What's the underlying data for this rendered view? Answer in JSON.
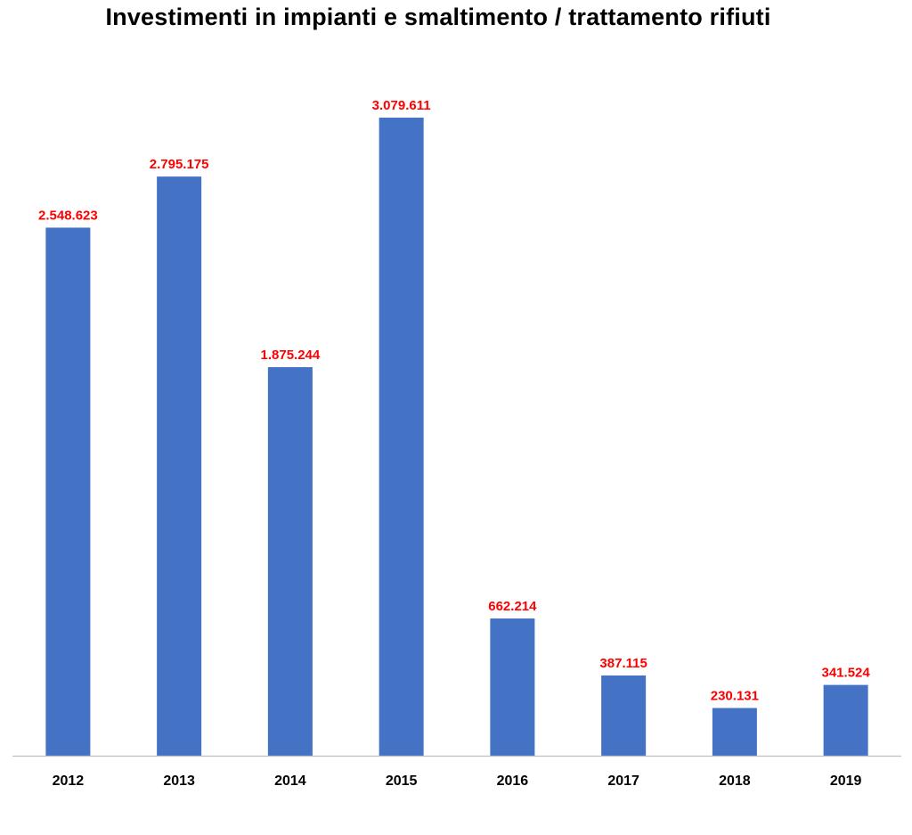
{
  "chart_data": {
    "type": "bar",
    "title": "Investimenti in impianti e smaltimento / trattamento rifiuti",
    "xlabel": "",
    "ylabel": "",
    "categories": [
      "2012",
      "2013",
      "2014",
      "2015",
      "2016",
      "2017",
      "2018",
      "2019"
    ],
    "values": [
      2548623,
      2795175,
      1875244,
      3079611,
      662214,
      387115,
      230131,
      341524
    ],
    "value_labels": [
      "2.548.623",
      "2.795.175",
      "1.875.244",
      "3.079.611",
      "662.214",
      "387.115",
      "230.131",
      "341.524"
    ],
    "ylim": [
      0,
      3079611
    ],
    "grid": false,
    "legend": "none",
    "y_axis_visible": false
  },
  "colors": {
    "bar": "#4472C4",
    "data_label": "#FF0000",
    "axis_line": "#BFBFBF",
    "text": "#000000"
  }
}
